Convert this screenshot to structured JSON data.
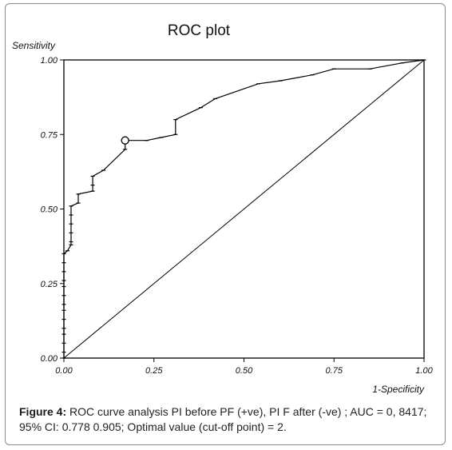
{
  "chart_data": {
    "type": "line",
    "title": "ROC plot",
    "ylabel": "Sensitivity",
    "xlabel": "1-Specificity",
    "xlim": [
      0,
      1
    ],
    "ylim": [
      0,
      1
    ],
    "x_ticks": [
      "0.00",
      "0.25",
      "0.50",
      "0.75",
      "1.00"
    ],
    "y_ticks": [
      "0.00",
      "0.25",
      "0.50",
      "0.75",
      "1.00"
    ],
    "grid": false,
    "series": [
      {
        "style": "roc-curve",
        "points": [
          [
            0.0,
            0.0
          ],
          [
            0.0,
            0.02
          ],
          [
            0.0,
            0.05
          ],
          [
            0.0,
            0.08
          ],
          [
            0.0,
            0.1
          ],
          [
            0.0,
            0.13
          ],
          [
            0.0,
            0.16
          ],
          [
            0.0,
            0.18
          ],
          [
            0.0,
            0.21
          ],
          [
            0.0,
            0.24
          ],
          [
            0.0,
            0.26
          ],
          [
            0.0,
            0.29
          ],
          [
            0.0,
            0.32
          ],
          [
            0.0,
            0.35
          ],
          [
            0.01,
            0.36
          ],
          [
            0.02,
            0.38
          ],
          [
            0.02,
            0.39
          ],
          [
            0.02,
            0.42
          ],
          [
            0.02,
            0.45
          ],
          [
            0.02,
            0.48
          ],
          [
            0.02,
            0.51
          ],
          [
            0.04,
            0.52
          ],
          [
            0.04,
            0.55
          ],
          [
            0.08,
            0.56
          ],
          [
            0.08,
            0.58
          ],
          [
            0.08,
            0.61
          ],
          [
            0.11,
            0.63
          ],
          [
            0.17,
            0.7
          ],
          [
            0.17,
            0.73
          ],
          [
            0.23,
            0.73
          ],
          [
            0.27,
            0.74
          ],
          [
            0.31,
            0.75
          ],
          [
            0.31,
            0.8
          ],
          [
            0.38,
            0.84
          ],
          [
            0.42,
            0.87
          ],
          [
            0.54,
            0.92
          ],
          [
            0.6,
            0.93
          ],
          [
            0.69,
            0.95
          ],
          [
            0.75,
            0.97
          ],
          [
            0.85,
            0.97
          ],
          [
            0.94,
            0.99
          ],
          [
            1.0,
            1.0
          ]
        ],
        "optimal_point": [
          0.17,
          0.73
        ]
      },
      {
        "style": "reference-diagonal",
        "points": [
          [
            0,
            0
          ],
          [
            1,
            1
          ]
        ]
      }
    ]
  },
  "caption": {
    "label": "Figure 4:",
    "text": " ROC curve analysis PI before PF (+ve), PI F after (-ve) ; AUC = 0, 8417; 95% CI: 0.778 0.905; Optimal value (cut-off point) = 2."
  }
}
